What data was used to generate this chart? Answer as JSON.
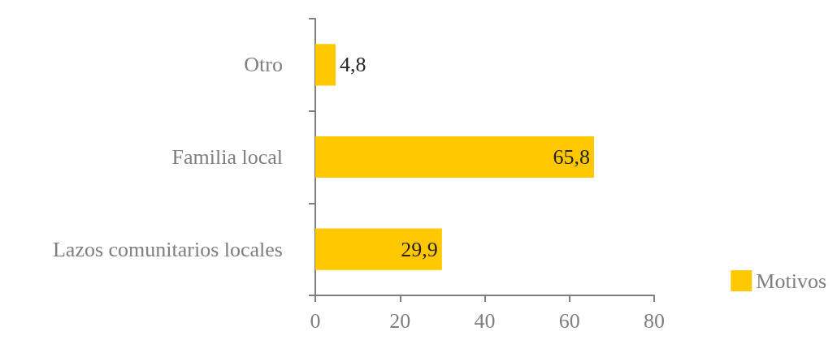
{
  "chart_data": {
    "type": "bar",
    "orientation": "horizontal",
    "categories": [
      "Otro",
      "Familia local",
      "Lazos comunitarios locales"
    ],
    "series": [
      {
        "name": "Motivos",
        "color": "#ffc800",
        "values": [
          4.8,
          65.8,
          29.9
        ],
        "value_labels": [
          "4,8",
          "65,8",
          "29,9"
        ]
      }
    ],
    "xlim": [
      0,
      80
    ],
    "xticks": [
      0,
      20,
      40,
      60,
      80
    ],
    "grid": false,
    "legend": "bottom right"
  }
}
